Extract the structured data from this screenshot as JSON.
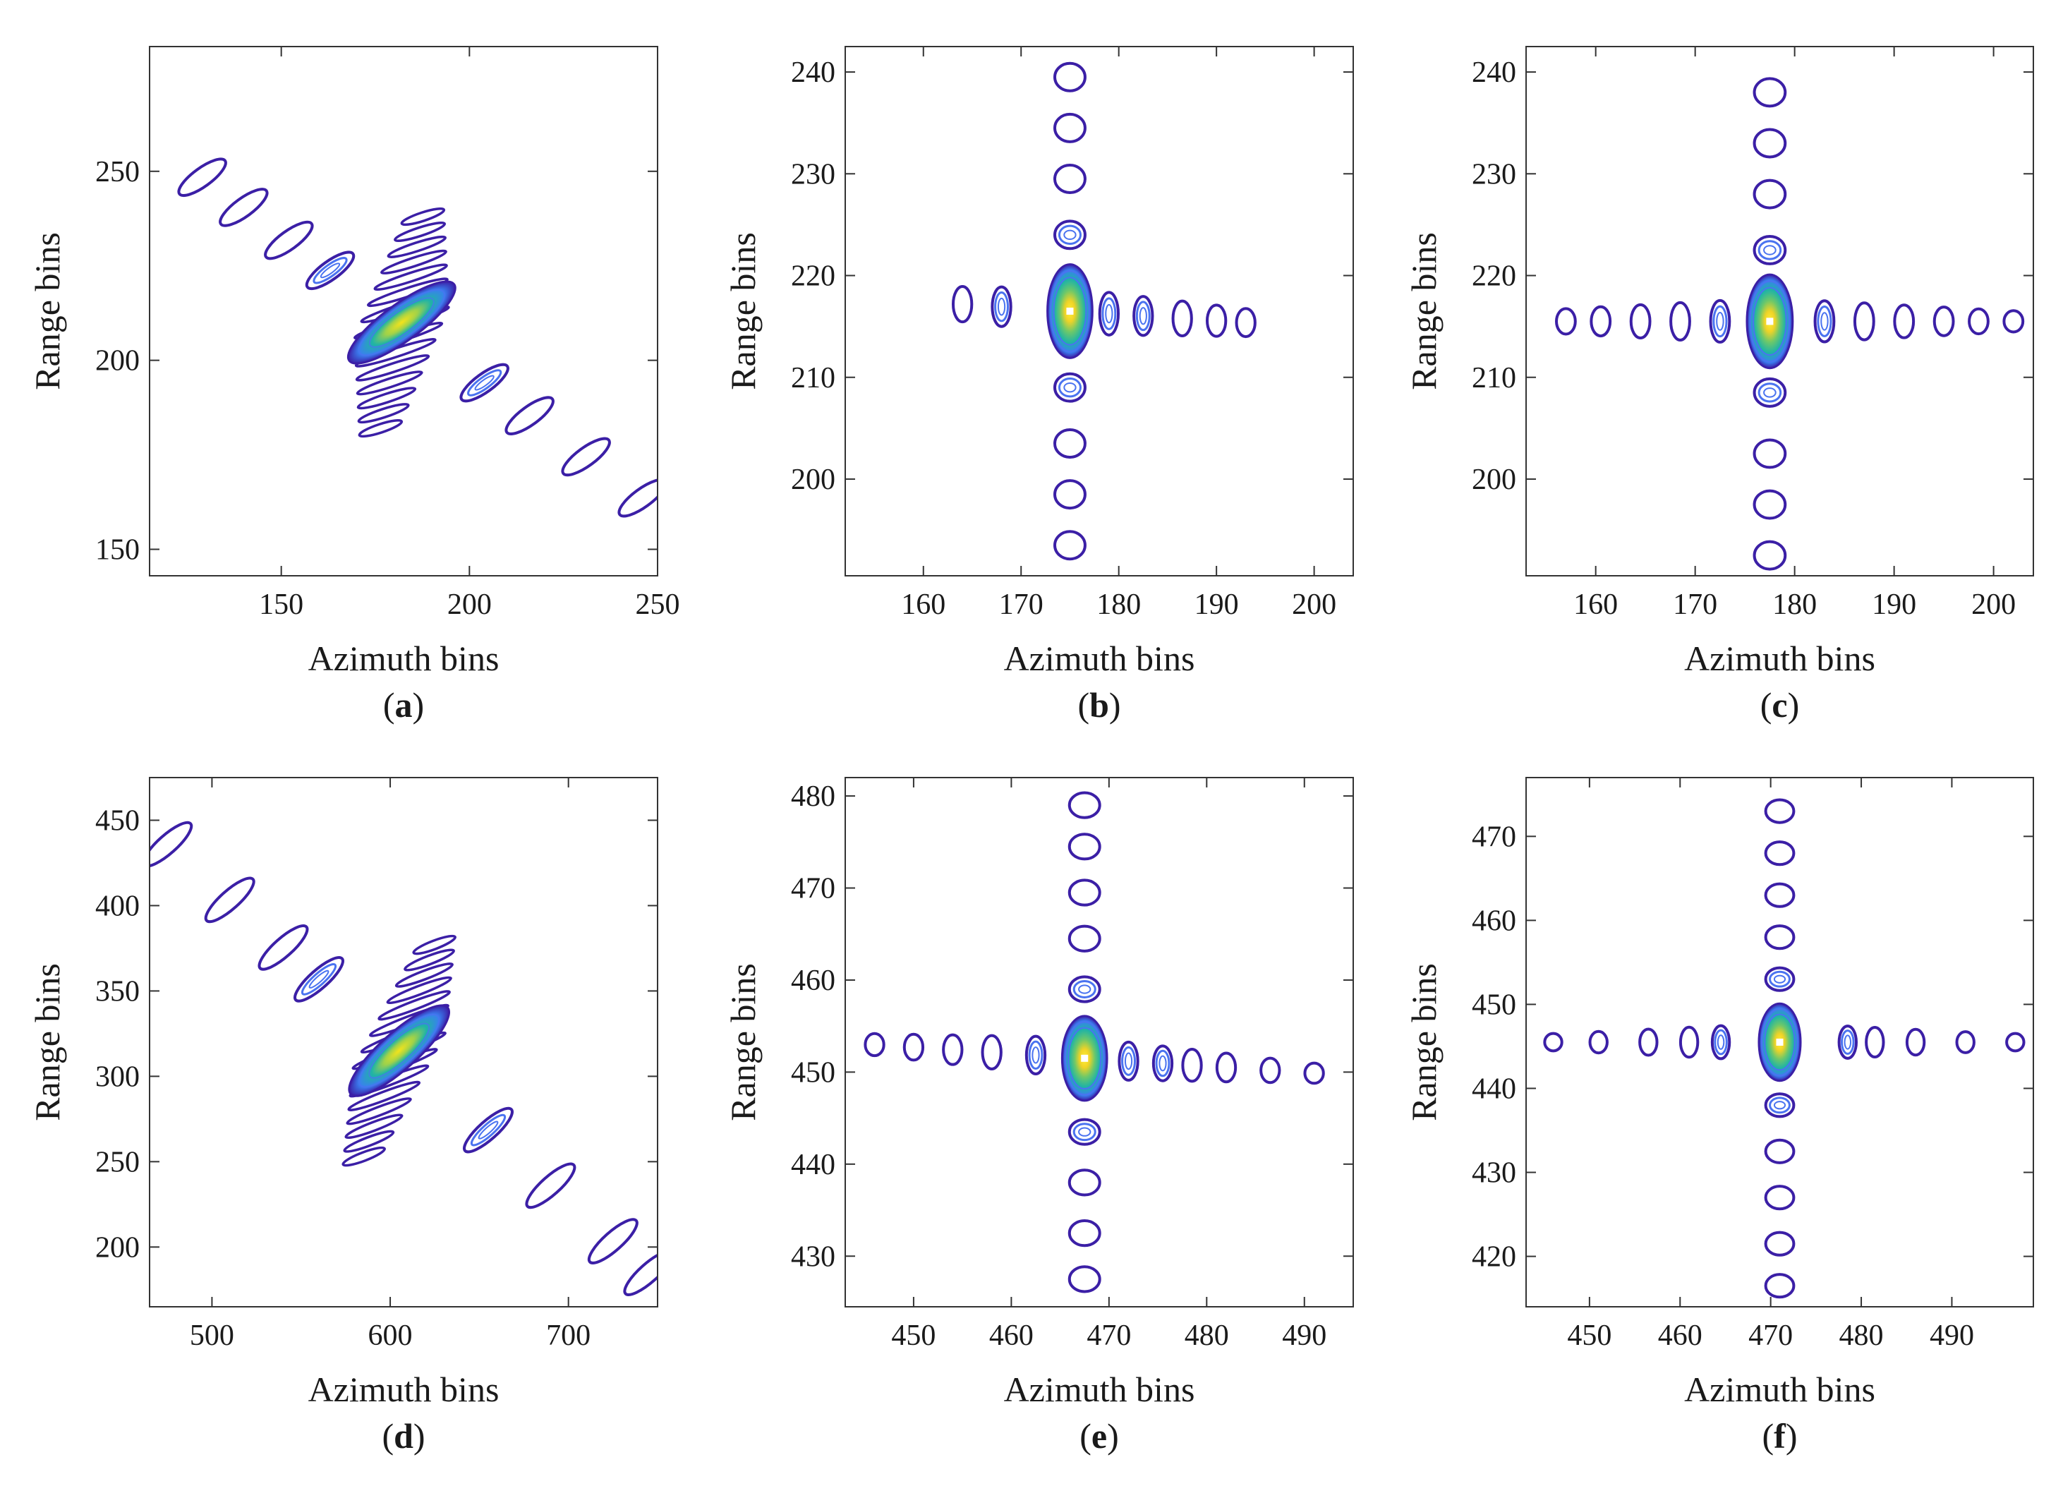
{
  "figure": {
    "colors": {
      "outer": "#3b1fa6",
      "mid": "#4a73f0",
      "inner": "#1fb3a6",
      "peak": "#f5e31a",
      "axis": "#333333"
    },
    "panels": [
      {
        "id": "a",
        "caption_letter": "a",
        "caption_open": "(",
        "caption_close": ")",
        "xlabel": "Azimuth bins",
        "ylabel": "Range bins",
        "xlim": [
          115,
          250
        ],
        "ylim": [
          283,
          143
        ],
        "xticks": [
          150,
          200,
          250
        ],
        "yticks": [
          150,
          200,
          250
        ],
        "contour_pattern": "diagonal",
        "target_center": {
          "azimuth": 182,
          "range": 210
        },
        "sidelobe_azimuths": [
          129,
          140,
          152,
          163,
          204,
          216,
          231,
          246
        ]
      },
      {
        "id": "b",
        "caption_letter": "b",
        "caption_open": "(",
        "caption_close": ")",
        "xlabel": "Azimuth bins",
        "ylabel": "Range bins",
        "xlim": [
          152,
          204
        ],
        "ylim": [
          242.5,
          190.5
        ],
        "xticks": [
          160,
          170,
          180,
          190,
          200
        ],
        "yticks": [
          200,
          210,
          220,
          230,
          240
        ],
        "contour_pattern": "cross",
        "target_center": {
          "azimuth": 175,
          "range": 216.5
        },
        "range_sidelobes": [
          193.5,
          198.5,
          203.5,
          209,
          224,
          229.5,
          234.5,
          239.5
        ],
        "azimuth_sidelobes": [
          164,
          168,
          179,
          182.5,
          186.5,
          190,
          193
        ]
      },
      {
        "id": "c",
        "caption_letter": "c",
        "caption_open": "(",
        "caption_close": ")",
        "xlabel": "Azimuth bins",
        "ylabel": "Range bins",
        "xlim": [
          153,
          204
        ],
        "ylim": [
          242.5,
          190.5
        ],
        "xticks": [
          160,
          170,
          180,
          190,
          200
        ],
        "yticks": [
          200,
          210,
          220,
          230,
          240
        ],
        "contour_pattern": "cross",
        "target_center": {
          "azimuth": 177.5,
          "range": 215.5
        },
        "range_sidelobes": [
          192.5,
          197.5,
          202.5,
          208.5,
          222.5,
          228,
          233,
          238
        ],
        "azimuth_sidelobes": [
          157,
          160.5,
          164.5,
          168.5,
          172.5,
          183,
          187,
          191,
          195,
          198.5,
          202
        ]
      },
      {
        "id": "d",
        "caption_letter": "d",
        "caption_open": "(",
        "caption_close": ")",
        "xlabel": "Azimuth bins",
        "ylabel": "Range bins",
        "xlim": [
          465,
          750
        ],
        "ylim": [
          475,
          165
        ],
        "xticks": [
          500,
          600,
          700
        ],
        "yticks": [
          200,
          250,
          300,
          350,
          400,
          450
        ],
        "contour_pattern": "diagonal",
        "target_center": {
          "azimuth": 605,
          "range": 315
        },
        "sidelobe_azimuths": [
          475,
          510,
          540,
          560,
          655,
          690,
          725,
          745
        ]
      },
      {
        "id": "e",
        "caption_letter": "e",
        "caption_open": "(",
        "caption_close": ")",
        "xlabel": "Azimuth bins",
        "ylabel": "Range bins",
        "xlim": [
          443,
          495
        ],
        "ylim": [
          482,
          424.5
        ],
        "xticks": [
          450,
          460,
          470,
          480,
          490
        ],
        "yticks": [
          430,
          440,
          450,
          460,
          470,
          480
        ],
        "contour_pattern": "cross",
        "target_center": {
          "azimuth": 467.5,
          "range": 451.5
        },
        "range_sidelobes": [
          427.5,
          432.5,
          438,
          443.5,
          459,
          464.5,
          469.5,
          474.5,
          479
        ],
        "azimuth_sidelobes": [
          446,
          450,
          454,
          458,
          462.5,
          472,
          475.5,
          478.5,
          482,
          486.5,
          491
        ]
      },
      {
        "id": "f",
        "caption_letter": "f",
        "caption_open": "(",
        "caption_close": ")",
        "xlabel": "Azimuth bins",
        "ylabel": "Range bins",
        "xlim": [
          443,
          499
        ],
        "ylim": [
          477,
          414
        ],
        "xticks": [
          450,
          460,
          470,
          480,
          490
        ],
        "yticks": [
          420,
          430,
          440,
          450,
          460,
          470
        ],
        "contour_pattern": "cross",
        "target_center": {
          "azimuth": 471,
          "range": 445.5
        },
        "range_sidelobes": [
          416.5,
          421.5,
          427,
          432.5,
          438,
          453,
          458,
          463,
          468,
          473
        ],
        "azimuth_sidelobes": [
          446,
          451,
          456.5,
          461,
          464.5,
          478.5,
          481.5,
          486,
          491.5,
          497
        ]
      }
    ]
  }
}
